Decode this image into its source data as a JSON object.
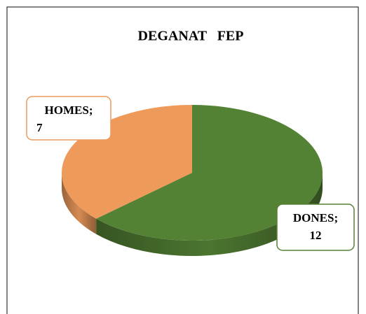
{
  "chart_data": {
    "type": "pie",
    "title": "DEGANAT   FEP",
    "categories": [
      "DONES",
      "HOMES"
    ],
    "values": [
      12,
      7
    ],
    "colors": [
      "#548235",
      "#ed9a5b"
    ],
    "label_separator": ";"
  }
}
